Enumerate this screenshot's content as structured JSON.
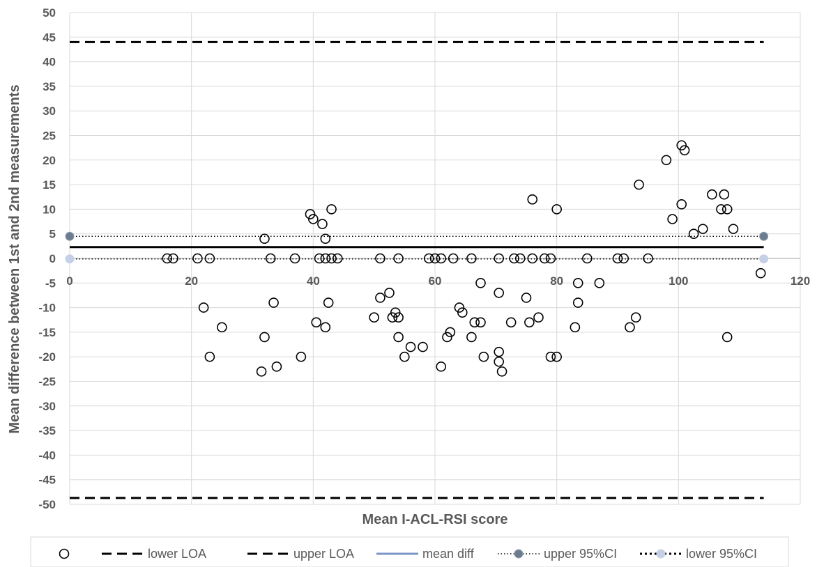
{
  "chart_data": {
    "type": "scatter",
    "title": "",
    "xlabel": "Mean I-ACL-RSI score",
    "ylabel": "Mean difference between 1st and 2nd measurements",
    "xlim": [
      0,
      120
    ],
    "ylim": [
      -50,
      50
    ],
    "x_ticks": [
      "0",
      "20",
      "40",
      "60",
      "80",
      "100",
      "120"
    ],
    "y_ticks": [
      "50",
      "45",
      "40",
      "35",
      "30",
      "25",
      "20",
      "15",
      "10",
      "5",
      "0",
      "-5",
      "-10",
      "-15",
      "-20",
      "-25",
      "-30",
      "-35",
      "-40",
      "-45",
      "-50"
    ],
    "grid": true,
    "legend_position": "bottom",
    "legend": [
      "",
      "lower LOA",
      "upper LOA",
      "mean diff",
      "upper 95%CI",
      "lower 95%CI"
    ],
    "lines": {
      "lower_loa": -48.7,
      "upper_loa": 44,
      "mean_diff": 2.3,
      "upper_95ci": 4.5,
      "lower_95ci": -0.1,
      "x_range": [
        0,
        114
      ]
    },
    "points": [
      [
        16,
        0
      ],
      [
        17,
        0
      ],
      [
        21,
        0
      ],
      [
        23,
        0
      ],
      [
        22,
        -10
      ],
      [
        23,
        -20
      ],
      [
        25,
        -14
      ],
      [
        31.5,
        -23
      ],
      [
        32,
        -16
      ],
      [
        32,
        4
      ],
      [
        33,
        0
      ],
      [
        33.5,
        -9
      ],
      [
        34,
        -22
      ],
      [
        37,
        0
      ],
      [
        38,
        -20
      ],
      [
        39.5,
        9
      ],
      [
        40,
        8
      ],
      [
        40.5,
        -13
      ],
      [
        41,
        0
      ],
      [
        41.5,
        7
      ],
      [
        42,
        0
      ],
      [
        42,
        4
      ],
      [
        42,
        -14
      ],
      [
        42.5,
        -9
      ],
      [
        43,
        10
      ],
      [
        43,
        0
      ],
      [
        44,
        0
      ],
      [
        50,
        -12
      ],
      [
        51,
        -8
      ],
      [
        51,
        0
      ],
      [
        52.5,
        -7
      ],
      [
        53,
        -12
      ],
      [
        53.5,
        -11
      ],
      [
        54,
        -12
      ],
      [
        54,
        -16
      ],
      [
        54,
        0
      ],
      [
        55,
        -20
      ],
      [
        56,
        -18
      ],
      [
        58,
        -18
      ],
      [
        59,
        0
      ],
      [
        60,
        0
      ],
      [
        61,
        0
      ],
      [
        61,
        -22
      ],
      [
        62,
        -16
      ],
      [
        62.5,
        -15
      ],
      [
        63,
        0
      ],
      [
        64,
        -10
      ],
      [
        64.5,
        -11
      ],
      [
        66,
        0
      ],
      [
        66,
        -16
      ],
      [
        66.5,
        -13
      ],
      [
        67.5,
        -13
      ],
      [
        67.5,
        -5
      ],
      [
        68,
        -20
      ],
      [
        70.5,
        0
      ],
      [
        70.5,
        -7
      ],
      [
        70.5,
        -19
      ],
      [
        70.5,
        -21
      ],
      [
        71,
        -23
      ],
      [
        72.5,
        -13
      ],
      [
        73,
        0
      ],
      [
        74,
        0
      ],
      [
        75,
        -8
      ],
      [
        75.5,
        -13
      ],
      [
        76,
        12
      ],
      [
        76,
        0
      ],
      [
        77,
        -12
      ],
      [
        78,
        0
      ],
      [
        79,
        0
      ],
      [
        79,
        -20
      ],
      [
        80,
        -20
      ],
      [
        80,
        10
      ],
      [
        83,
        -14
      ],
      [
        83.5,
        -5
      ],
      [
        83.5,
        -9
      ],
      [
        85,
        0
      ],
      [
        87,
        -5
      ],
      [
        90,
        0
      ],
      [
        91,
        0
      ],
      [
        92,
        -14
      ],
      [
        93,
        -12
      ],
      [
        93.5,
        15
      ],
      [
        95,
        0
      ],
      [
        98,
        20
      ],
      [
        99,
        8
      ],
      [
        100.5,
        23
      ],
      [
        100.5,
        11
      ],
      [
        101,
        22
      ],
      [
        102.5,
        5
      ],
      [
        104,
        6
      ],
      [
        105.5,
        13
      ],
      [
        107,
        10
      ],
      [
        107.5,
        13
      ],
      [
        108,
        -16
      ],
      [
        108,
        10
      ],
      [
        109,
        6
      ],
      [
        113.5,
        -3
      ]
    ]
  }
}
